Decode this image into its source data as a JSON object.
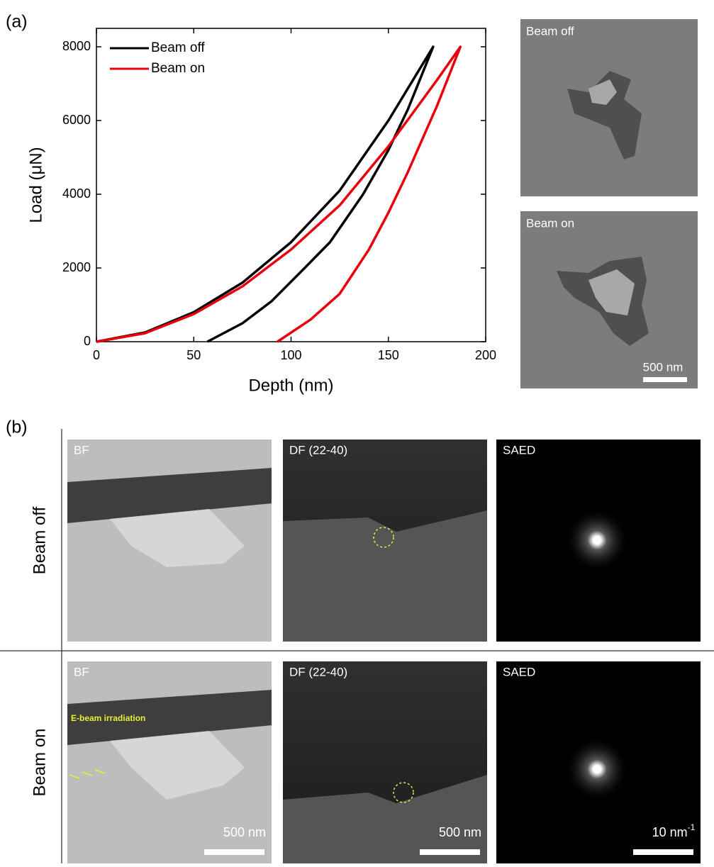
{
  "chart_data": {
    "type": "line",
    "xlabel": "Depth (nm)",
    "ylabel": "Load (μN)",
    "xlim": [
      0,
      200
    ],
    "xticks": [
      0,
      50,
      100,
      150,
      200
    ],
    "ylim": [
      0,
      8500
    ],
    "yticks": [
      0,
      2000,
      4000,
      6000,
      8000
    ],
    "legend": "top-left",
    "series": [
      {
        "name": "Beam off",
        "color": "#000000",
        "x": [
          0,
          25,
          50,
          75,
          100,
          125,
          150,
          173,
          160,
          150,
          137,
          120,
          107,
          90,
          75,
          57
        ],
        "values": [
          0,
          250,
          800,
          1600,
          2700,
          4100,
          6000,
          8000,
          6300,
          5200,
          4000,
          2700,
          2000,
          1100,
          500,
          0
        ]
      },
      {
        "name": "Beam on",
        "color": "#e8000b",
        "x": [
          0,
          25,
          50,
          75,
          100,
          125,
          150,
          175,
          187,
          175,
          160,
          150,
          140,
          125,
          110,
          93
        ],
        "values": [
          0,
          230,
          750,
          1500,
          2500,
          3700,
          5300,
          7100,
          8000,
          6400,
          4600,
          3500,
          2500,
          1300,
          600,
          0
        ]
      }
    ]
  },
  "figure": {
    "panel_a_label": "(a)",
    "sem_images": [
      {
        "label": "Beam off"
      },
      {
        "label": "Beam on",
        "scale_bar": "500 nm"
      }
    ],
    "panel_b_label": "(b)",
    "rows": [
      {
        "label": "Beam off",
        "images": [
          {
            "label": "BF"
          },
          {
            "label": "DF (22-40)"
          },
          {
            "label": "SAED"
          }
        ]
      },
      {
        "label": "Beam on",
        "annotation": "E-beam irradiation",
        "images": [
          {
            "label": "BF",
            "scale_bar": "500 nm"
          },
          {
            "label": "DF (22-40)",
            "scale_bar": "500 nm"
          },
          {
            "label": "SAED",
            "scale_bar": "10 nm",
            "scale_bar_superscript": "-1"
          }
        ]
      }
    ]
  }
}
